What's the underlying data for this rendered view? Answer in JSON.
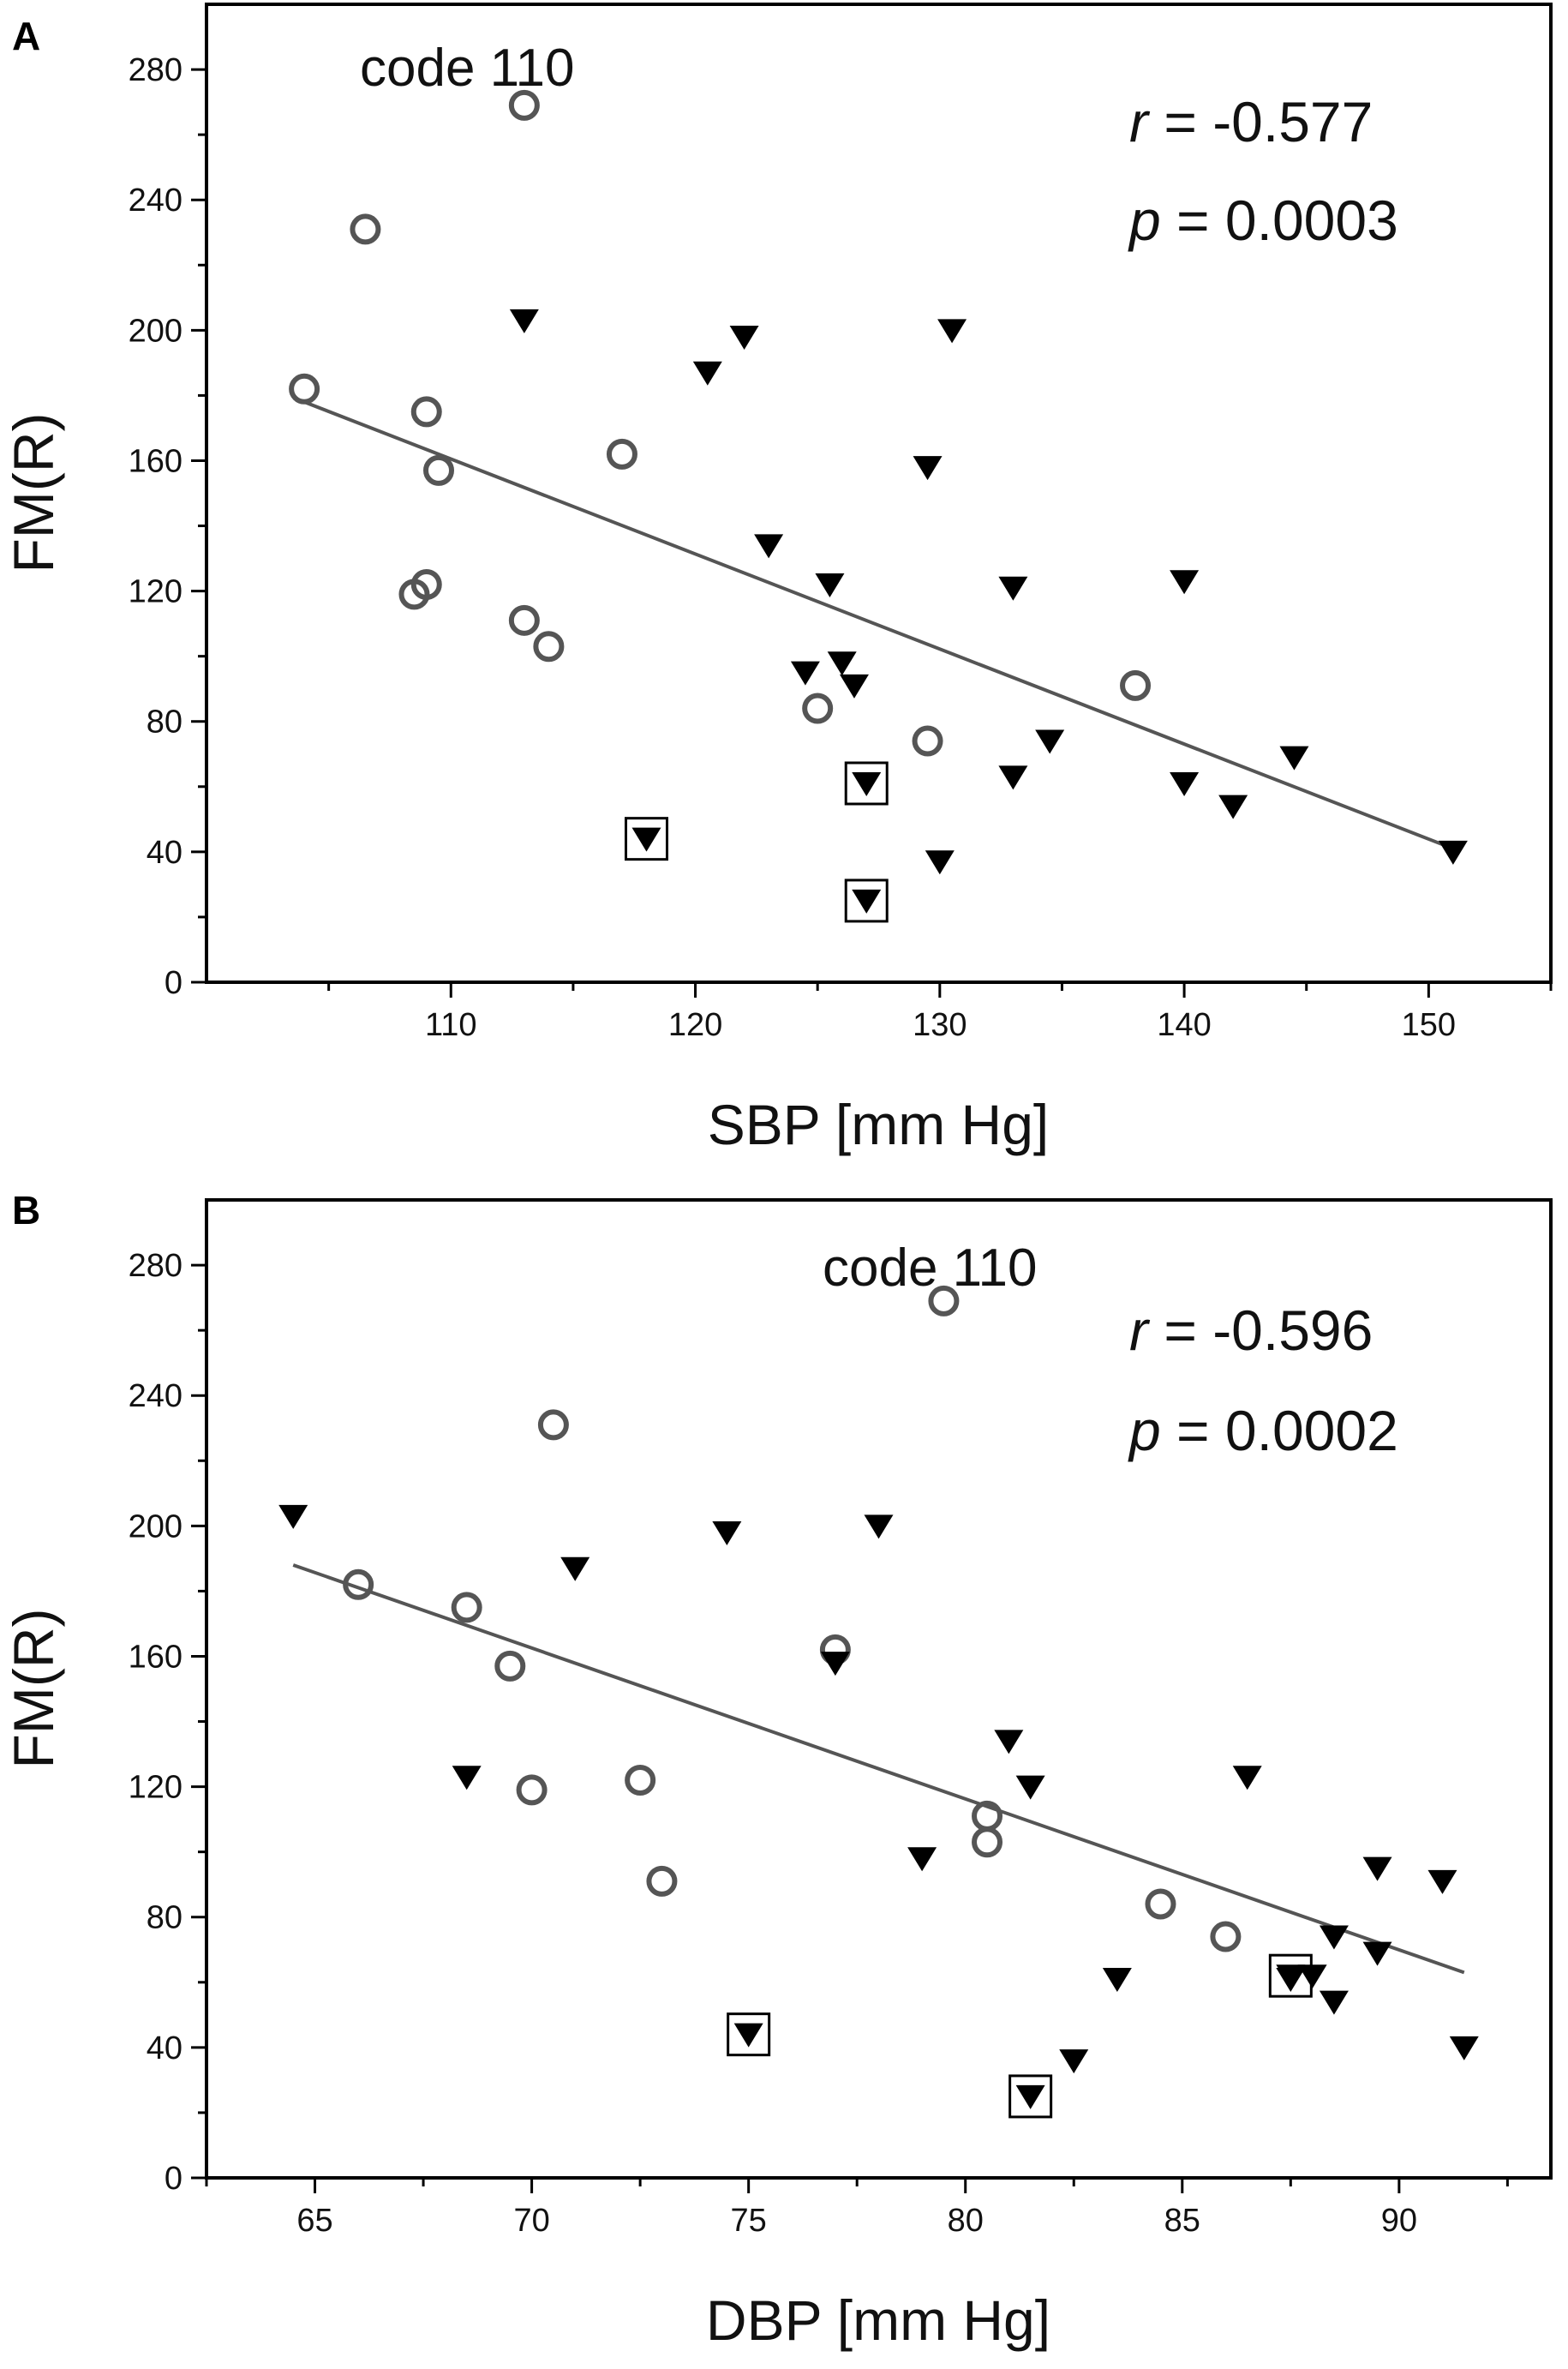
{
  "chart_data": [
    {
      "panel": "A",
      "type": "scatter",
      "xlabel": "SBP [mm Hg]",
      "ylabel": "FM(R)",
      "xlim": [
        100,
        155
      ],
      "ylim": [
        0,
        300
      ],
      "xticks": [
        110,
        120,
        130,
        140,
        150
      ],
      "yticks": [
        0,
        40,
        80,
        120,
        160,
        200,
        240,
        280
      ],
      "annotation": "code 110",
      "stats": {
        "r_label": "r",
        "r_text": " = -0.577",
        "p_label": "p",
        "p_text": " = 0.0003"
      },
      "series": [
        {
          "name": "circles",
          "marker": "circle",
          "color": "#555555",
          "points": [
            [
              104,
              182
            ],
            [
              106.5,
              231
            ],
            [
              109,
              175
            ],
            [
              109.5,
              157
            ],
            [
              109,
              122
            ],
            [
              108.5,
              119
            ],
            [
              113,
              269
            ],
            [
              113,
              111
            ],
            [
              114,
              103
            ],
            [
              117,
              162
            ],
            [
              125,
              84
            ],
            [
              129.5,
              74
            ],
            [
              138,
              91
            ]
          ]
        },
        {
          "name": "triangles",
          "marker": "triangle-down",
          "color": "#000000",
          "points": [
            [
              113,
              203
            ],
            [
              120.5,
              187
            ],
            [
              122,
              198
            ],
            [
              123,
              134
            ],
            [
              125.5,
              122
            ],
            [
              124.5,
              95
            ],
            [
              126,
              98
            ],
            [
              126.5,
              91
            ],
            [
              129.5,
              158
            ],
            [
              130.5,
              200
            ],
            [
              133,
              121
            ],
            [
              140,
              123
            ],
            [
              134.5,
              74
            ],
            [
              133,
              63
            ],
            [
              130,
              37
            ],
            [
              140,
              61
            ],
            [
              142,
              54
            ],
            [
              144.5,
              69
            ],
            [
              151,
              40
            ]
          ]
        },
        {
          "name": "boxed-triangles",
          "marker": "boxed-triangle-down",
          "color": "#000000",
          "points": [
            [
              118,
              44
            ],
            [
              127,
              61
            ],
            [
              127,
              25
            ]
          ]
        }
      ],
      "fit_line": {
        "x": [
          104,
          151
        ],
        "y": [
          178,
          41
        ]
      }
    },
    {
      "panel": "B",
      "type": "scatter",
      "xlabel": "DBP [mm Hg]",
      "ylabel": "FM(R)",
      "xlim": [
        62.5,
        93.5
      ],
      "ylim": [
        0,
        300
      ],
      "xticks": [
        65,
        70,
        75,
        80,
        85,
        90
      ],
      "yticks": [
        0,
        40,
        80,
        120,
        160,
        200,
        240,
        280
      ],
      "annotation": "code 110",
      "stats": {
        "r_label": "r",
        "r_text": " = -0.596",
        "p_label": "p",
        "p_text": " = 0.0002"
      },
      "series": [
        {
          "name": "circles",
          "marker": "circle",
          "color": "#555555",
          "points": [
            [
              66,
              182
            ],
            [
              68.5,
              175
            ],
            [
              69.5,
              157
            ],
            [
              70,
              119
            ],
            [
              70.5,
              231
            ],
            [
              72.5,
              122
            ],
            [
              73,
              91
            ],
            [
              77,
              162
            ],
            [
              79.5,
              269
            ],
            [
              80.5,
              111
            ],
            [
              80.5,
              103
            ],
            [
              84.5,
              84
            ],
            [
              86,
              74
            ]
          ]
        },
        {
          "name": "triangles",
          "marker": "triangle-down",
          "color": "#000000",
          "points": [
            [
              64.5,
              203
            ],
            [
              68.5,
              123
            ],
            [
              71,
              187
            ],
            [
              74.5,
              198
            ],
            [
              77,
              158
            ],
            [
              78,
              200
            ],
            [
              79,
              98
            ],
            [
              81,
              134
            ],
            [
              81.5,
              120
            ],
            [
              82.5,
              36
            ],
            [
              83.5,
              61
            ],
            [
              86.5,
              123
            ],
            [
              87.5,
              61
            ],
            [
              88,
              62
            ],
            [
              88.5,
              74
            ],
            [
              88.5,
              54
            ],
            [
              89.5,
              95
            ],
            [
              89.5,
              69
            ],
            [
              91,
              91
            ],
            [
              91.5,
              40
            ]
          ]
        },
        {
          "name": "boxed-triangles",
          "marker": "boxed-triangle-down",
          "color": "#000000",
          "points": [
            [
              75,
              44
            ],
            [
              81.5,
              25
            ],
            [
              87.5,
              62
            ]
          ]
        }
      ],
      "fit_line": {
        "x": [
          64.5,
          91.5
        ],
        "y": [
          188,
          63
        ]
      }
    }
  ]
}
